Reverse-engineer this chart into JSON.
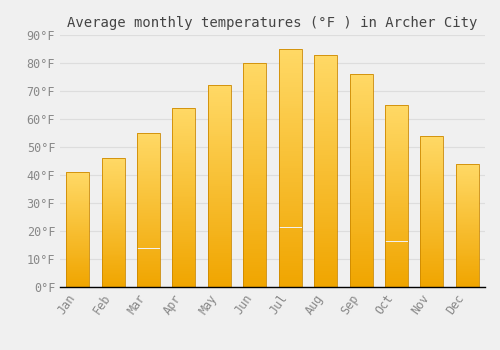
{
  "title": "Average monthly temperatures (°F ) in Archer City",
  "months": [
    "Jan",
    "Feb",
    "Mar",
    "Apr",
    "May",
    "Jun",
    "Jul",
    "Aug",
    "Sep",
    "Oct",
    "Nov",
    "Dec"
  ],
  "temperatures": [
    41,
    46,
    55,
    64,
    72,
    80,
    85,
    83,
    76,
    65,
    54,
    44
  ],
  "bar_color_top": "#FFD966",
  "bar_color_bottom": "#F0A500",
  "bar_edge_color": "#CC8800",
  "background_color": "#F0F0F0",
  "grid_color": "#DDDDDD",
  "ylim": [
    0,
    90
  ],
  "ytick_step": 10,
  "title_fontsize": 10,
  "tick_fontsize": 8.5,
  "tick_label_color": "#888888",
  "title_color": "#444444",
  "font_family": "monospace"
}
